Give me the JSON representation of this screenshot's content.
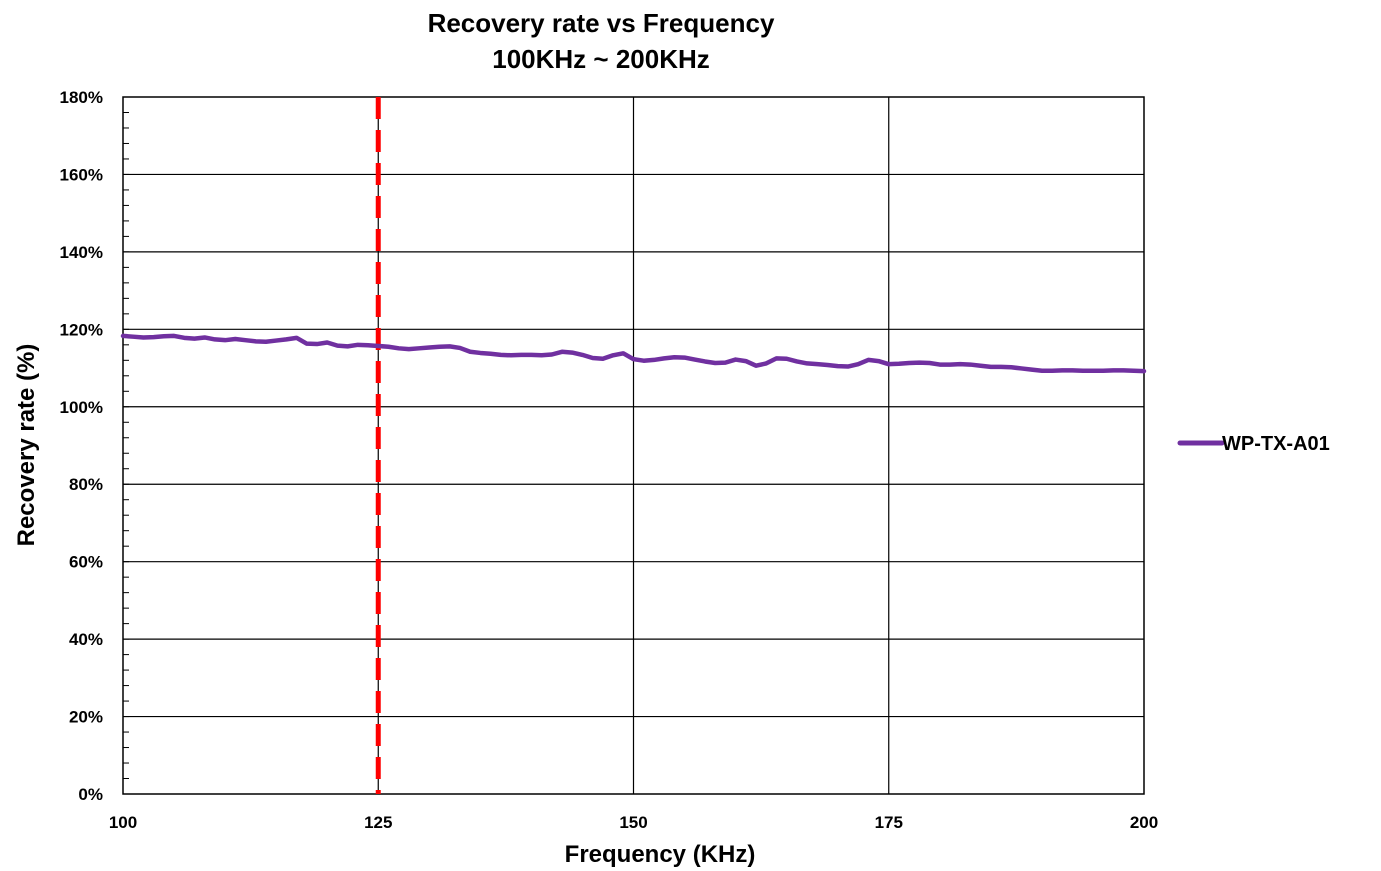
{
  "chart_data": {
    "type": "line",
    "title": "Recovery rate vs Frequency",
    "subtitle": "100KHz ~ 200KHz",
    "xlabel": "Frequency (KHz)",
    "ylabel": "Recovery rate (%)",
    "xlim": [
      100,
      200
    ],
    "ylim": [
      0,
      180
    ],
    "x_ticks": [
      "100",
      "125",
      "150",
      "175",
      "200"
    ],
    "y_ticks": [
      "0%",
      "20%",
      "40%",
      "60%",
      "80%",
      "100%",
      "120%",
      "140%",
      "160%",
      "180%"
    ],
    "grid": true,
    "legend_position": "right",
    "reference_line": {
      "x": 125,
      "color": "#ff0000",
      "style": "dashed"
    },
    "series": [
      {
        "name": "WP-TX-A01",
        "color": "#7030a0",
        "x": [
          100,
          101,
          102,
          103,
          104,
          105,
          106,
          107,
          108,
          109,
          110,
          111,
          112,
          113,
          114,
          115,
          116,
          117,
          118,
          119,
          120,
          121,
          122,
          123,
          124,
          125,
          126,
          127,
          128,
          129,
          130,
          131,
          132,
          133,
          134,
          135,
          136,
          137,
          138,
          139,
          140,
          141,
          142,
          143,
          144,
          145,
          146,
          147,
          148,
          149,
          150,
          151,
          152,
          153,
          154,
          155,
          156,
          157,
          158,
          159,
          160,
          161,
          162,
          163,
          164,
          165,
          166,
          167,
          168,
          169,
          170,
          171,
          172,
          173,
          174,
          175,
          176,
          177,
          178,
          179,
          180,
          181,
          182,
          183,
          184,
          185,
          186,
          187,
          188,
          189,
          190,
          191,
          192,
          193,
          194,
          195,
          196,
          197,
          198,
          199,
          200
        ],
        "y": [
          118.3,
          118.1,
          117.9,
          118.0,
          118.2,
          118.3,
          117.8,
          117.6,
          117.9,
          117.4,
          117.2,
          117.5,
          117.2,
          116.9,
          116.8,
          117.1,
          117.4,
          117.8,
          116.3,
          116.2,
          116.6,
          115.8,
          115.6,
          116.0,
          115.9,
          115.7,
          115.5,
          115.1,
          114.9,
          115.1,
          115.3,
          115.5,
          115.6,
          115.2,
          114.2,
          113.9,
          113.7,
          113.4,
          113.3,
          113.4,
          113.4,
          113.3,
          113.5,
          114.2,
          114.0,
          113.4,
          112.6,
          112.4,
          113.3,
          113.8,
          112.3,
          111.9,
          112.1,
          112.5,
          112.8,
          112.7,
          112.2,
          111.7,
          111.3,
          111.4,
          112.2,
          111.8,
          110.6,
          111.2,
          112.5,
          112.4,
          111.7,
          111.2,
          111.0,
          110.8,
          110.5,
          110.4,
          111.0,
          112.1,
          111.8,
          111.0,
          111.1,
          111.3,
          111.4,
          111.3,
          110.9,
          110.9,
          111.0,
          110.9,
          110.6,
          110.3,
          110.3,
          110.2,
          109.9,
          109.6,
          109.3,
          109.3,
          109.4,
          109.4,
          109.3,
          109.3,
          109.3,
          109.4,
          109.4,
          109.3,
          109.2
        ]
      }
    ]
  }
}
